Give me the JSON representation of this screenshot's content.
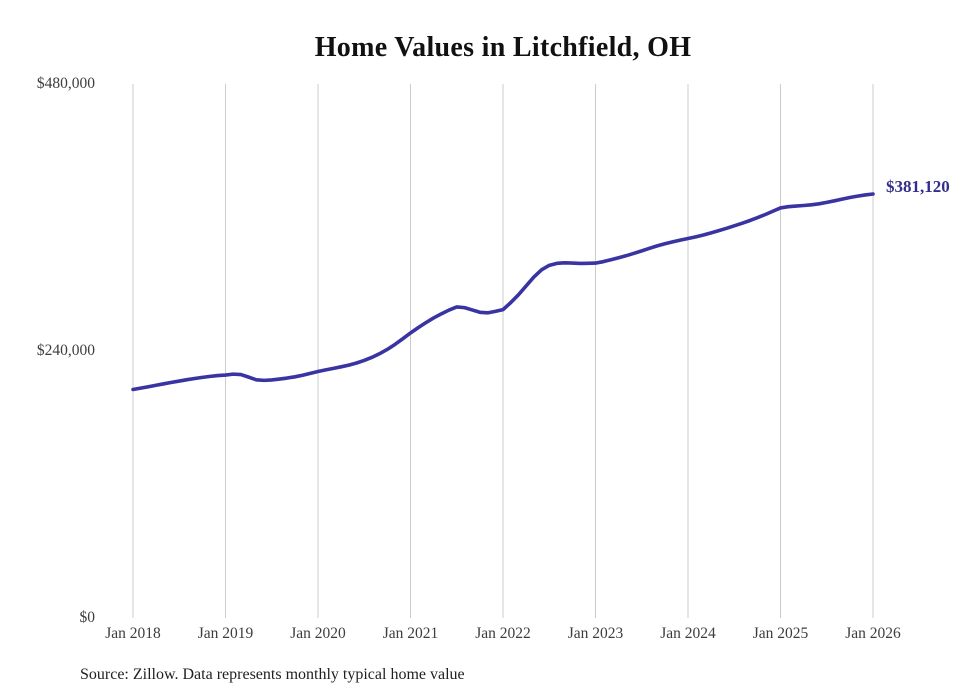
{
  "title": "Home Values in Litchfield, OH",
  "source_note": "Source: Zillow. Data represents monthly typical home value",
  "annotation": {
    "label": "$381,120"
  },
  "colors": {
    "line": "#3a34a3",
    "annotation": "#312e8e",
    "gridline": "#cccccc",
    "tick_text": "#3d3d3d",
    "title_text": "#111111",
    "background": "#ffffff"
  },
  "chart_data": {
    "type": "line",
    "title": "Home Values in Litchfield, OH",
    "xlabel": "",
    "ylabel": "",
    "ylim": [
      0,
      480000
    ],
    "grid": "vertical-only",
    "legend": "none",
    "x_ticks": [
      "Jan 2018",
      "Jan 2019",
      "Jan 2020",
      "Jan 2021",
      "Jan 2022",
      "Jan 2023",
      "Jan 2024",
      "Jan 2025",
      "Jan 2026"
    ],
    "y_tick_labels": [
      "$0",
      "$240,000",
      "$480,000"
    ],
    "y_tick_values": [
      0,
      240000,
      480000
    ],
    "end_value": 381120,
    "end_label": "$381,120",
    "series": [
      {
        "name": "Monthly typical home value",
        "start_month": "Jan 2018",
        "end_month": "Jan 2026",
        "interval": "monthly",
        "values": [
          205400,
          206600,
          207900,
          209200,
          210500,
          211800,
          213000,
          214200,
          215300,
          216300,
          217200,
          217900,
          218400,
          219200,
          218800,
          216500,
          214100,
          213600,
          214000,
          214800,
          215700,
          216800,
          218200,
          219900,
          221600,
          223000,
          224400,
          225800,
          227300,
          229200,
          231500,
          234300,
          237600,
          241500,
          246000,
          251000,
          256200,
          261000,
          265500,
          269700,
          273400,
          276800,
          279600,
          279000,
          276900,
          274800,
          274300,
          275600,
          277200,
          283500,
          290500,
          298500,
          306500,
          313000,
          317000,
          318800,
          319300,
          319000,
          318700,
          318800,
          319000,
          320300,
          322000,
          323800,
          325700,
          327800,
          330000,
          332300,
          334500,
          336400,
          338100,
          339700,
          341100,
          342600,
          344300,
          346200,
          348200,
          350300,
          352500,
          354800,
          357200,
          359800,
          362600,
          365600,
          368600,
          369700,
          370300,
          370800,
          371400,
          372300,
          373600,
          375000,
          376500,
          378000,
          379200,
          380300,
          381120
        ]
      }
    ]
  }
}
